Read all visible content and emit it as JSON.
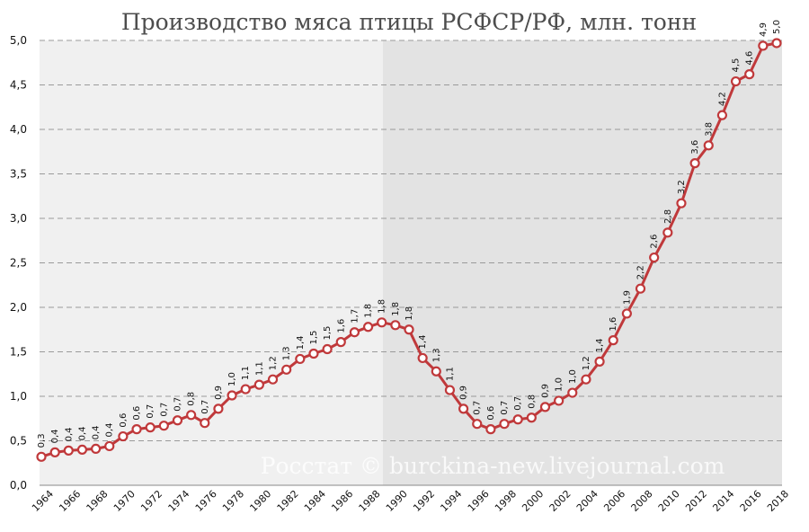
{
  "chart_data": {
    "type": "line",
    "title": "Производство мяса птицы РСФСР/РФ, млн. тонн",
    "xlabel": "",
    "ylabel": "",
    "ylim": [
      0,
      5
    ],
    "yticks": [
      "0,0",
      "0,5",
      "1,0",
      "1,5",
      "2,0",
      "2,5",
      "3,0",
      "3,5",
      "4,0",
      "4,5",
      "5,0"
    ],
    "xticks": [
      "1964",
      "1966",
      "1968",
      "1970",
      "1972",
      "1974",
      "1976",
      "1978",
      "1980",
      "1982",
      "1984",
      "1986",
      "1988",
      "1990",
      "1992",
      "1994",
      "1996",
      "1998",
      "2000",
      "2002",
      "2004",
      "2006",
      "2008",
      "2010",
      "2012",
      "2014",
      "2016",
      "2018"
    ],
    "grid": true,
    "background_bands": [
      {
        "from": 1964,
        "to": 1989,
        "color": "#f0f0f0"
      },
      {
        "from": 1990,
        "to": 2018,
        "color": "#e3e3e3"
      }
    ],
    "series": [
      {
        "color": "#c0393b",
        "x": [
          1964,
          1965,
          1966,
          1967,
          1968,
          1969,
          1970,
          1971,
          1972,
          1973,
          1974,
          1975,
          1976,
          1977,
          1978,
          1979,
          1980,
          1981,
          1982,
          1983,
          1984,
          1985,
          1986,
          1987,
          1988,
          1989,
          1990,
          1991,
          1992,
          1993,
          1994,
          1995,
          1996,
          1997,
          1998,
          1999,
          2000,
          2001,
          2002,
          2003,
          2004,
          2005,
          2006,
          2007,
          2008,
          2009,
          2010,
          2011,
          2012,
          2013,
          2014,
          2015,
          2016,
          2017,
          2018
        ],
        "y": [
          0.32,
          0.37,
          0.39,
          0.4,
          0.41,
          0.44,
          0.55,
          0.63,
          0.65,
          0.67,
          0.73,
          0.79,
          0.7,
          0.86,
          1.01,
          1.08,
          1.13,
          1.19,
          1.3,
          1.42,
          1.48,
          1.53,
          1.61,
          1.72,
          1.78,
          1.83,
          1.8,
          1.75,
          1.43,
          1.28,
          1.07,
          0.86,
          0.69,
          0.63,
          0.69,
          0.74,
          0.76,
          0.88,
          0.95,
          1.04,
          1.19,
          1.39,
          1.63,
          1.93,
          2.21,
          2.56,
          2.84,
          3.17,
          3.62,
          3.82,
          4.16,
          4.54,
          4.62,
          4.94,
          4.97
        ],
        "labels": [
          "0,3",
          "0,4",
          "0,4",
          "0,4",
          "0,4",
          "0,4",
          "0,6",
          "0,6",
          "0,7",
          "0,7",
          "0,7",
          "0,8",
          "0,7",
          "0,9",
          "1,0",
          "1,1",
          "1,1",
          "1,2",
          "1,3",
          "1,4",
          "1,5",
          "1,5",
          "1,6",
          "1,7",
          "1,8",
          "1,8",
          "1,8",
          "1,8",
          "1,4",
          "1,3",
          "1,1",
          "0,9",
          "0,7",
          "0,6",
          "0,7",
          "0,7",
          "0,8",
          "0,9",
          "1,0",
          "1,0",
          "1,2",
          "1,4",
          "1,6",
          "1,9",
          "2,2",
          "2,6",
          "2,8",
          "3,2",
          "3,6",
          "3,8",
          "4,2",
          "4,5",
          "4,6",
          "4,9",
          "5,0"
        ]
      }
    ],
    "watermark": "Росстат © burckina-new.livejournal.com"
  }
}
